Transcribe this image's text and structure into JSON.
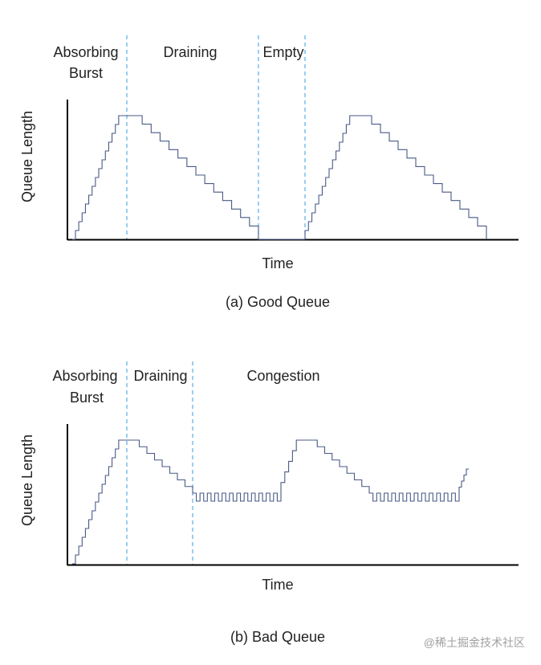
{
  "colors": {
    "axis": "#000000",
    "trace": "#4a5a86",
    "divider": "#5aaee6",
    "text": "#222222",
    "watermark": "#a0a0a0"
  },
  "panels": [
    {
      "id": "good",
      "caption": "(a) Good Queue",
      "x_label": "Time",
      "y_label": "Queue Length",
      "regions": [
        {
          "id": "absorbing",
          "lines": [
            "Absorbing",
            "Burst"
          ]
        },
        {
          "id": "draining",
          "lines": [
            "Draining"
          ]
        },
        {
          "id": "empty",
          "lines": [
            "Empty"
          ]
        }
      ]
    },
    {
      "id": "bad",
      "caption": "(b) Bad Queue",
      "x_label": "Time",
      "y_label": "Queue Length",
      "regions": [
        {
          "id": "absorbing",
          "lines": [
            "Absorbing",
            "Burst"
          ]
        },
        {
          "id": "draining",
          "lines": [
            "Draining"
          ]
        },
        {
          "id": "congestion",
          "lines": [
            "Congestion"
          ]
        }
      ]
    }
  ],
  "watermark": "@稀土掘金技术社区"
}
